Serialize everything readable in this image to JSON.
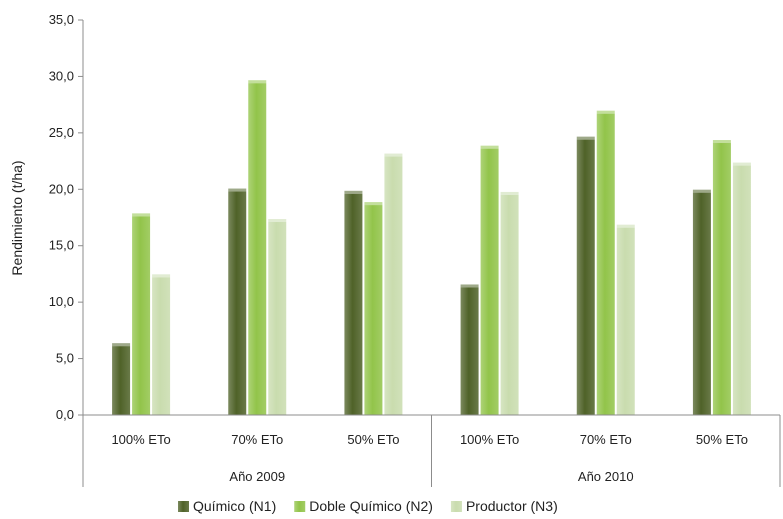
{
  "chart_data": {
    "type": "bar",
    "ylabel": "Rendimiento (t/ha)",
    "ylim": [
      0,
      35
    ],
    "yticks": [
      "0,0",
      "5,0",
      "10,0",
      "15,0",
      "20,0",
      "25,0",
      "30,0",
      "35,0"
    ],
    "grid": false,
    "legend_position": "bottom",
    "groups": [
      {
        "label": "Año 2009",
        "categories": [
          "100% ETo",
          "70% ETo",
          "50% ETo"
        ]
      },
      {
        "label": "Año 2010",
        "categories": [
          "100% ETo",
          "70% ETo",
          "50% ETo"
        ]
      }
    ],
    "categories": [
      "100% ETo",
      "70% ETo",
      "50% ETo",
      "100% ETo",
      "70% ETo",
      "50% ETo"
    ],
    "series": [
      {
        "name": "Químico (N1)",
        "color": "#4f6228",
        "values": [
          6.1,
          19.8,
          19.6,
          11.3,
          24.4,
          19.7
        ]
      },
      {
        "name": "Doble Químico (N2)",
        "color": "#92c44a",
        "values": [
          17.6,
          29.4,
          18.6,
          23.6,
          26.7,
          24.1
        ]
      },
      {
        "name": "Productor (N3)",
        "color": "#c9dcae",
        "values": [
          12.2,
          17.1,
          22.9,
          19.5,
          16.6,
          22.1
        ]
      }
    ]
  }
}
